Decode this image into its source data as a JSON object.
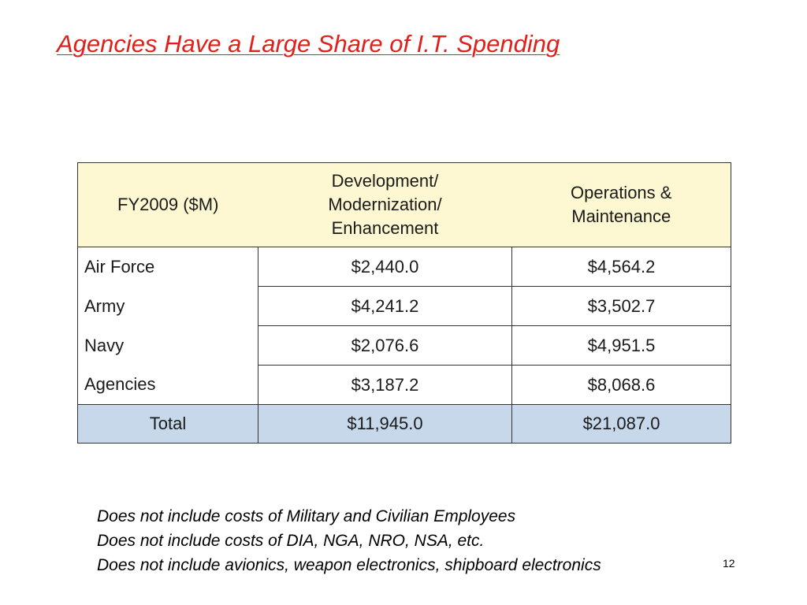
{
  "slide": {
    "title": "Agencies Have a Large Share of I.T. Spending",
    "page_number": "12",
    "title_color": "#e0201b"
  },
  "table": {
    "header_label": "FY2009 ($M)",
    "col_dev": "Development/ Modernization/ Enhancement",
    "col_ops": "Operations & Maintenance",
    "rows": [
      {
        "label": "Air Force",
        "dev": "$2,440.0",
        "ops": "$4,564.2"
      },
      {
        "label": "Army",
        "dev": "$4,241.2",
        "ops": "$3,502.7"
      },
      {
        "label": "Navy",
        "dev": "$2,076.6",
        "ops": "$4,951.5"
      },
      {
        "label": "Agencies",
        "dev": "$3,187.2",
        "ops": "$8,068.6"
      }
    ],
    "total": {
      "label": "Total",
      "dev": "$11,945.0",
      "ops": "$21,087.0"
    },
    "header_bg": "#fdf8d2",
    "total_bg": "#c6d8ea"
  },
  "notes": [
    "Does not include costs of Military and Civilian Employees",
    "Does not include costs of DIA, NGA, NRO, NSA, etc.",
    "Does not include avionics, weapon electronics, shipboard electronics"
  ]
}
